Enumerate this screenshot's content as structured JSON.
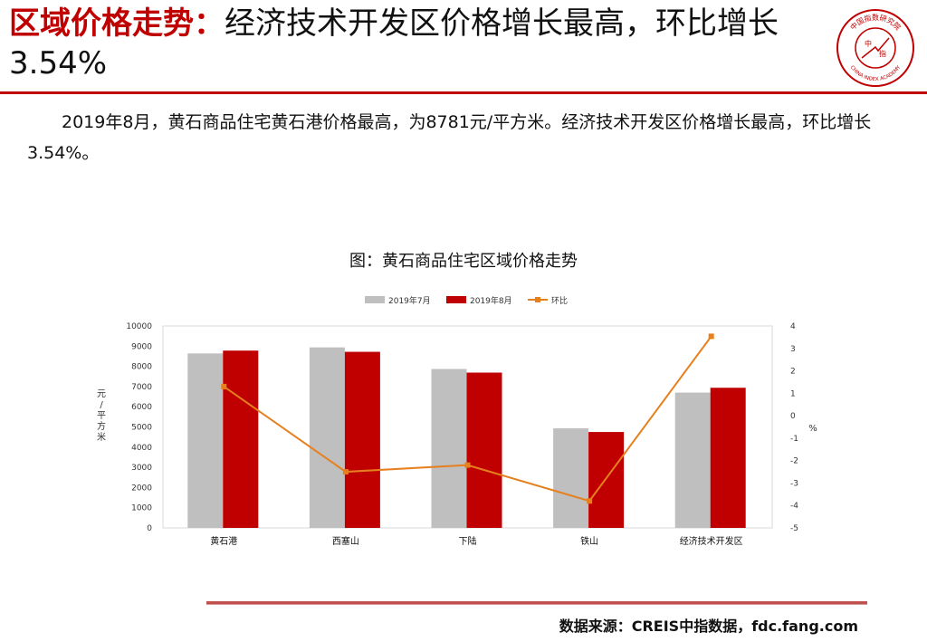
{
  "header": {
    "title_keyword": "区域价格走势：",
    "title_rest": "经济技术开发区价格增长最高，环比增长3.54%",
    "logo_text_top": "中国指数研究院",
    "logo_text_bottom": "CHINA INDEX ACADEMY",
    "logo_center_left": "中",
    "logo_center_right": "指"
  },
  "summary": "2019年8月，黄石商品住宅黄石港价格最高，为8781元/平方米。经济技术开发区价格增长最高，环比增长3.54%。",
  "chart_title": "图：黄石商品住宅区域价格走势",
  "chart_data": {
    "type": "bar",
    "categories": [
      "黄石港",
      "西塞山",
      "下陆",
      "铁山",
      "经济技术开发区"
    ],
    "series": [
      {
        "name": "2019年7月",
        "values": [
          8640,
          8940,
          7870,
          4930,
          6700
        ],
        "axis": "left",
        "kind": "bar",
        "color": "#bfbfbf"
      },
      {
        "name": "2019年8月",
        "values": [
          8781,
          8720,
          7690,
          4750,
          6940
        ],
        "axis": "left",
        "kind": "bar",
        "color": "#c00000"
      },
      {
        "name": "环比",
        "values": [
          1.3,
          -2.5,
          -2.2,
          -3.8,
          3.54
        ],
        "axis": "right",
        "kind": "line",
        "color": "#e6801e"
      }
    ],
    "ylabel": "元/平方米",
    "y2label": "%",
    "ylim": [
      0,
      10000
    ],
    "yticks": [
      0,
      1000,
      2000,
      3000,
      4000,
      5000,
      6000,
      7000,
      8000,
      9000,
      10000
    ],
    "y2lim": [
      -5,
      4
    ],
    "y2ticks": [
      -5,
      -4,
      -3,
      -2,
      -1,
      0,
      1,
      2,
      3,
      4
    ],
    "legend": "top-center"
  },
  "footer": {
    "source": "数据来源：CREIS中指数据，fdc.fang.com"
  },
  "colors": {
    "accent": "#c00000",
    "bar_prev": "#bfbfbf",
    "bar_curr": "#c00000",
    "line": "#e6801e"
  }
}
